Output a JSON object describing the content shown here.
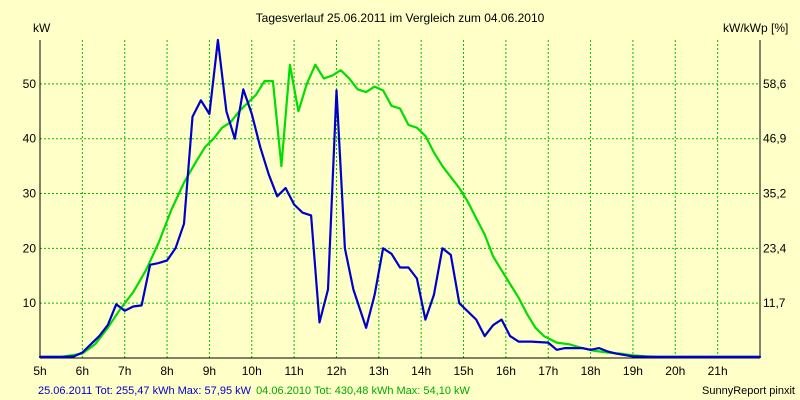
{
  "chart_data": {
    "type": "line",
    "title": "Tagesverlauf 25.06.2011 im Vergleich zum 04.06.2010",
    "ylabel_left": "kW",
    "ylabel_right": "kW/kWp [%]",
    "ylim": [
      0,
      58
    ],
    "y_ticks": [
      "10",
      "20",
      "30",
      "40",
      "50"
    ],
    "y_right_ticks": [
      "11,7",
      "23,4",
      "35,2",
      "46,9",
      "58,6"
    ],
    "x_ticks": [
      "5h",
      "6h",
      "7h",
      "8h",
      "9h",
      "10h",
      "11h",
      "12h",
      "13h",
      "14h",
      "15h",
      "16h",
      "17h",
      "18h",
      "19h",
      "20h",
      "21h"
    ],
    "xlim": [
      5.0,
      22.0
    ],
    "grid": true,
    "series": [
      {
        "name": "25.06.2011",
        "color": "#0000cc",
        "points": [
          [
            5.0,
            0.2
          ],
          [
            5.5,
            0.2
          ],
          [
            5.8,
            0.3
          ],
          [
            6.0,
            1.0
          ],
          [
            6.2,
            2.5
          ],
          [
            6.4,
            4.0
          ],
          [
            6.6,
            6.0
          ],
          [
            6.8,
            9.8
          ],
          [
            7.0,
            8.6
          ],
          [
            7.2,
            9.4
          ],
          [
            7.4,
            9.6
          ],
          [
            7.6,
            17.0
          ],
          [
            7.8,
            17.3
          ],
          [
            8.0,
            17.8
          ],
          [
            8.2,
            20.0
          ],
          [
            8.4,
            24.5
          ],
          [
            8.6,
            44.0
          ],
          [
            8.8,
            47.0
          ],
          [
            9.0,
            44.5
          ],
          [
            9.2,
            58.0
          ],
          [
            9.4,
            45.0
          ],
          [
            9.6,
            40.0
          ],
          [
            9.8,
            49.0
          ],
          [
            10.0,
            44.5
          ],
          [
            10.2,
            38.5
          ],
          [
            10.4,
            33.5
          ],
          [
            10.6,
            29.5
          ],
          [
            10.8,
            31.0
          ],
          [
            11.0,
            28.0
          ],
          [
            11.2,
            26.5
          ],
          [
            11.4,
            26.0
          ],
          [
            11.6,
            6.5
          ],
          [
            11.8,
            12.5
          ],
          [
            12.0,
            48.8
          ],
          [
            12.2,
            20.0
          ],
          [
            12.4,
            12.5
          ],
          [
            12.7,
            5.5
          ],
          [
            12.9,
            11.5
          ],
          [
            13.1,
            20.0
          ],
          [
            13.3,
            19.0
          ],
          [
            13.5,
            16.5
          ],
          [
            13.7,
            16.5
          ],
          [
            13.9,
            14.5
          ],
          [
            14.1,
            7.0
          ],
          [
            14.3,
            11.5
          ],
          [
            14.5,
            20.0
          ],
          [
            14.7,
            18.8
          ],
          [
            14.9,
            10.0
          ],
          [
            15.1,
            8.5
          ],
          [
            15.3,
            7.0
          ],
          [
            15.5,
            4.0
          ],
          [
            15.7,
            6.0
          ],
          [
            15.9,
            7.0
          ],
          [
            16.1,
            4.0
          ],
          [
            16.3,
            3.0
          ],
          [
            16.6,
            3.0
          ],
          [
            17.0,
            2.8
          ],
          [
            17.2,
            1.5
          ],
          [
            17.4,
            1.8
          ],
          [
            17.8,
            1.8
          ],
          [
            18.0,
            1.5
          ],
          [
            18.2,
            1.8
          ],
          [
            18.4,
            1.2
          ],
          [
            18.6,
            0.8
          ],
          [
            19.0,
            0.3
          ],
          [
            19.5,
            0.2
          ],
          [
            22.0,
            0.2
          ]
        ]
      },
      {
        "name": "04.06.2010",
        "color": "#00dd00",
        "points": [
          [
            5.0,
            0.2
          ],
          [
            5.5,
            0.2
          ],
          [
            6.0,
            0.8
          ],
          [
            6.3,
            2.5
          ],
          [
            6.6,
            5.5
          ],
          [
            6.9,
            9.0
          ],
          [
            7.2,
            12.0
          ],
          [
            7.5,
            16.0
          ],
          [
            7.8,
            21.0
          ],
          [
            8.1,
            27.0
          ],
          [
            8.4,
            32.0
          ],
          [
            8.7,
            36.0
          ],
          [
            8.9,
            38.5
          ],
          [
            9.1,
            40.0
          ],
          [
            9.3,
            42.0
          ],
          [
            9.5,
            43.0
          ],
          [
            9.7,
            45.0
          ],
          [
            9.9,
            46.5
          ],
          [
            10.1,
            48.0
          ],
          [
            10.3,
            50.5
          ],
          [
            10.5,
            50.5
          ],
          [
            10.7,
            35.0
          ],
          [
            10.9,
            53.5
          ],
          [
            11.1,
            45.0
          ],
          [
            11.3,
            50.0
          ],
          [
            11.5,
            53.5
          ],
          [
            11.7,
            51.0
          ],
          [
            11.9,
            51.5
          ],
          [
            12.1,
            52.5
          ],
          [
            12.3,
            51.0
          ],
          [
            12.5,
            49.0
          ],
          [
            12.7,
            48.5
          ],
          [
            12.9,
            49.5
          ],
          [
            13.1,
            48.8
          ],
          [
            13.3,
            46.0
          ],
          [
            13.5,
            45.5
          ],
          [
            13.7,
            42.5
          ],
          [
            13.9,
            42.0
          ],
          [
            14.1,
            40.5
          ],
          [
            14.3,
            37.5
          ],
          [
            14.5,
            35.0
          ],
          [
            14.7,
            33.0
          ],
          [
            14.9,
            31.0
          ],
          [
            15.1,
            28.5
          ],
          [
            15.3,
            25.5
          ],
          [
            15.5,
            22.5
          ],
          [
            15.7,
            18.5
          ],
          [
            15.9,
            16.0
          ],
          [
            16.1,
            13.5
          ],
          [
            16.3,
            11.0
          ],
          [
            16.5,
            8.0
          ],
          [
            16.7,
            5.5
          ],
          [
            16.9,
            4.0
          ],
          [
            17.2,
            2.8
          ],
          [
            17.5,
            2.5
          ],
          [
            17.8,
            1.8
          ],
          [
            18.1,
            1.3
          ],
          [
            18.4,
            1.0
          ],
          [
            18.7,
            0.8
          ],
          [
            19.0,
            0.5
          ],
          [
            19.3,
            0.3
          ],
          [
            19.6,
            0.2
          ],
          [
            22.0,
            0.2
          ]
        ]
      }
    ]
  },
  "footer": {
    "left_prefix": "25.06.2011 Tot: 255,47 kWh Max: 57,95 kW",
    "left_suffix": "04.06.2010 Tot: 430,48 kWh Max: 54,10 kW",
    "right": "SunnyReport pinxit"
  },
  "colors": {
    "background": "#ffffc8",
    "grid": "#00c000",
    "series_2011": "#0000cc",
    "series_2010": "#00dd00"
  }
}
